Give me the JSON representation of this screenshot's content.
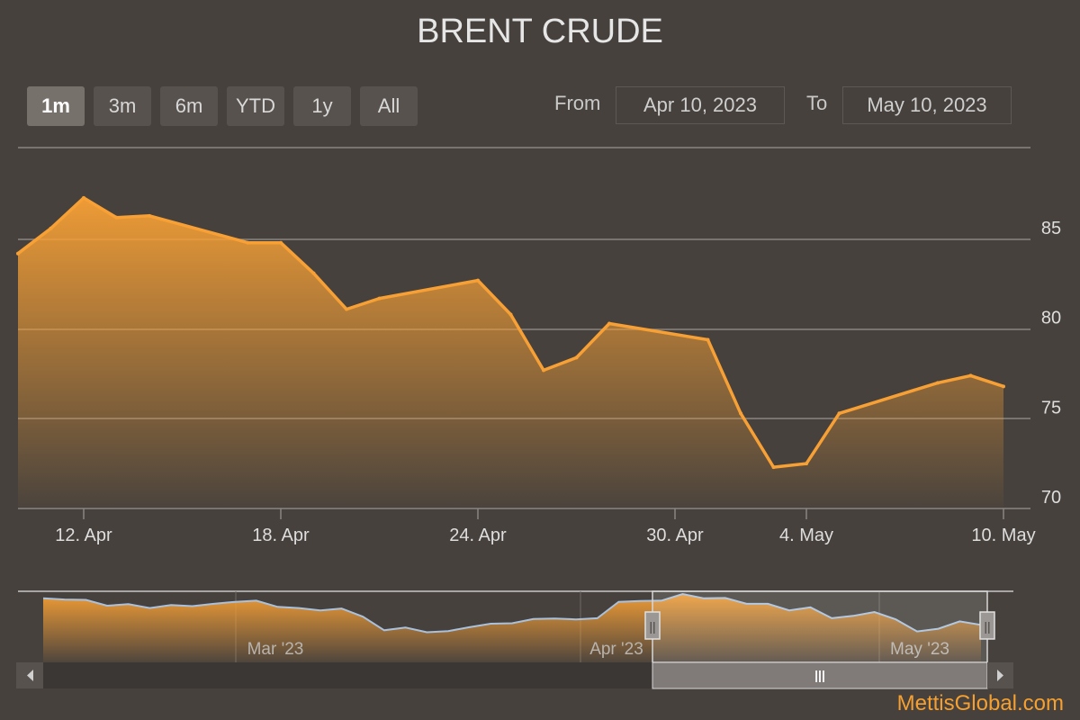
{
  "title": "BRENT CRUDE",
  "range_buttons": [
    {
      "label": "1m",
      "active": true
    },
    {
      "label": "3m",
      "active": false
    },
    {
      "label": "6m",
      "active": false
    },
    {
      "label": "YTD",
      "active": false
    },
    {
      "label": "1y",
      "active": false
    },
    {
      "label": "All",
      "active": false
    }
  ],
  "date_range": {
    "from_label": "From",
    "from_value": "Apr 10, 2023",
    "to_label": "To",
    "to_value": "May 10, 2023"
  },
  "navigator": {
    "labels": [
      "Mar '23",
      "Apr '23",
      "May '23"
    ],
    "handle_glyph": "||",
    "scrollbar_grip": "|||"
  },
  "colors": {
    "line": "#f7a035",
    "navigator_line": "#a9c1dd",
    "background": "#46413d",
    "watermark": "#f5a030"
  },
  "watermark": "MettisGlobal.com",
  "chart_data": {
    "type": "area",
    "title": "BRENT CRUDE",
    "x": [
      "2023-04-10",
      "2023-04-11",
      "2023-04-12",
      "2023-04-13",
      "2023-04-14",
      "2023-04-17",
      "2023-04-18",
      "2023-04-19",
      "2023-04-20",
      "2023-04-21",
      "2023-04-24",
      "2023-04-25",
      "2023-04-26",
      "2023-04-27",
      "2023-04-28",
      "2023-05-01",
      "2023-05-02",
      "2023-05-03",
      "2023-05-04",
      "2023-05-05",
      "2023-05-08",
      "2023-05-09",
      "2023-05-10"
    ],
    "values": [
      84.2,
      85.6,
      87.3,
      86.2,
      86.3,
      84.8,
      84.8,
      83.1,
      81.1,
      81.7,
      82.7,
      80.8,
      77.7,
      78.4,
      80.3,
      79.4,
      75.3,
      72.3,
      72.5,
      75.3,
      77.0,
      77.4,
      76.8
    ],
    "x_ticks": [
      "12. Apr",
      "18. Apr",
      "24. Apr",
      "30. Apr",
      "4. May",
      "10. May"
    ],
    "x_tick_dates": [
      "2023-04-12",
      "2023-04-18",
      "2023-04-24",
      "2023-04-30",
      "2023-05-04",
      "2023-05-10"
    ],
    "y_ticks": [
      70,
      75,
      80,
      85
    ],
    "ylim": [
      70,
      90
    ],
    "grid": true,
    "navigator_values": [
      86.2,
      85.9,
      85.8,
      84.3,
      84.7,
      83.7,
      84.5,
      84.2,
      84.8,
      85.3,
      85.6,
      84.0,
      83.7,
      83.1,
      83.6,
      81.5,
      78.0,
      78.7,
      77.5,
      77.8,
      78.8,
      79.7,
      79.8,
      80.9,
      81.0,
      80.8,
      81.1,
      85.3,
      85.5,
      85.6,
      87.3,
      86.2,
      86.3,
      84.8,
      84.8,
      83.1,
      83.9,
      81.1,
      81.7,
      82.7,
      80.8,
      77.7,
      78.4,
      80.3,
      79.4
    ]
  }
}
